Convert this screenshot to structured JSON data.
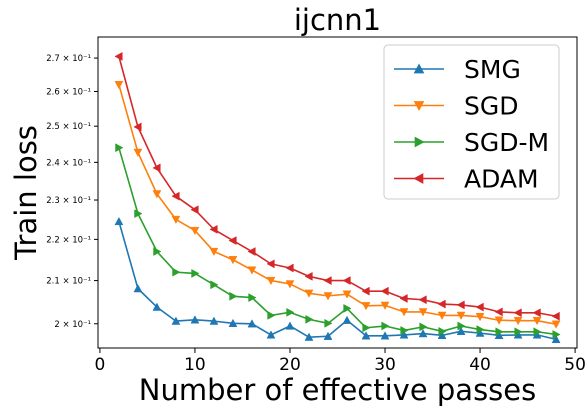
{
  "chart_data": {
    "type": "line",
    "title": "ijcnn1",
    "xlabel": "Number of effective passes",
    "ylabel": "Train loss",
    "xlim": [
      -0.2,
      50.2
    ],
    "ylim": [
      0.1946,
      0.2765
    ],
    "yscale": "log",
    "grid": false,
    "legend_position": "top-right",
    "x": [
      2,
      4,
      6,
      8,
      10,
      12,
      14,
      16,
      18,
      20,
      22,
      24,
      26,
      28,
      30,
      32,
      34,
      36,
      38,
      40,
      42,
      44,
      46,
      48
    ],
    "x_ticks": [
      0,
      10,
      20,
      30,
      40,
      50
    ],
    "x_tick_labels": [
      "0",
      "10",
      "20",
      "30",
      "40",
      "50"
    ],
    "y_ticks": [
      0.2,
      0.21,
      0.22,
      0.23,
      0.24,
      0.25,
      0.26,
      0.27
    ],
    "y_tick_labels": [
      "2 × 10⁻¹",
      "2.1 × 10⁻¹",
      "2.2 × 10⁻¹",
      "2.3 × 10⁻¹",
      "2.4 × 10⁻¹",
      "2.5 × 10⁻¹",
      "2.6 × 10⁻¹",
      "2.7 × 10⁻¹"
    ],
    "series": [
      {
        "name": "SMG",
        "color": "#1f77b4",
        "marker": "triangle-up",
        "values": [
          0.2245,
          0.2081,
          0.2038,
          0.2006,
          0.2009,
          0.2006,
          0.2001,
          0.2,
          0.1975,
          0.1995,
          0.197,
          0.1972,
          0.2008,
          0.1973,
          0.1973,
          0.1975,
          0.1978,
          0.1974,
          0.1983,
          0.1979,
          0.1974,
          0.1975,
          0.1975,
          0.1965
        ]
      },
      {
        "name": "SGD",
        "color": "#ff7f0e",
        "marker": "triangle-down",
        "values": [
          0.262,
          0.2427,
          0.2316,
          0.225,
          0.2222,
          0.217,
          0.215,
          0.2125,
          0.21,
          0.2092,
          0.207,
          0.2064,
          0.2068,
          0.2041,
          0.2042,
          0.2027,
          0.2027,
          0.2019,
          0.2019,
          0.2016,
          0.2008,
          0.2007,
          0.2007,
          0.1999
        ]
      },
      {
        "name": "SGD-M",
        "color": "#2ca02c",
        "marker": "triangle-right",
        "values": [
          0.244,
          0.2265,
          0.217,
          0.212,
          0.2117,
          0.209,
          0.2063,
          0.206,
          0.2019,
          0.2026,
          0.201,
          0.2001,
          0.2035,
          0.1991,
          0.1995,
          0.1985,
          0.1993,
          0.1983,
          0.1995,
          0.1987,
          0.1982,
          0.1982,
          0.1982,
          0.1976
        ]
      },
      {
        "name": "ADAM",
        "color": "#d62728",
        "marker": "triangle-left",
        "values": [
          0.2705,
          0.2498,
          0.2385,
          0.231,
          0.2275,
          0.2225,
          0.2197,
          0.217,
          0.214,
          0.213,
          0.211,
          0.21,
          0.21,
          0.2075,
          0.2075,
          0.2058,
          0.2055,
          0.2045,
          0.2043,
          0.2038,
          0.2027,
          0.2025,
          0.2025,
          0.2017
        ]
      }
    ]
  }
}
